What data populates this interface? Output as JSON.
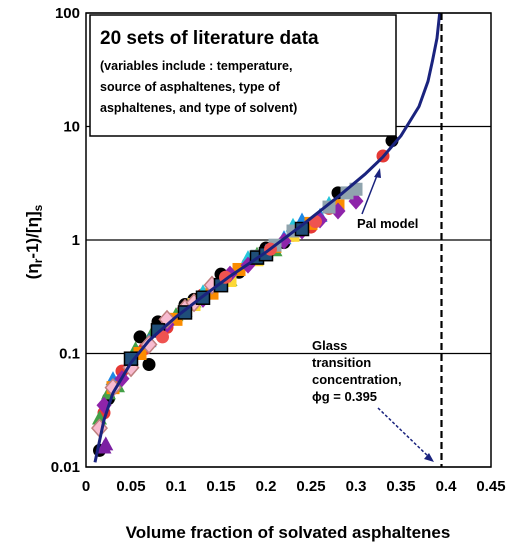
{
  "chart_data": {
    "type": "scatter",
    "title": "",
    "xlabel": "Volume fraction of  solvated asphaltenes",
    "ylabel": "(ηᵣ-1)/[η]ₛ",
    "ylabel_parts": {
      "a": "(η",
      "b": "r",
      "c": "-1)/[η]",
      "d": "s"
    },
    "xlim": [
      0,
      0.45
    ],
    "ylim": [
      0.01,
      100
    ],
    "yscale": "log",
    "grid": {
      "x": false,
      "y": true
    },
    "xticks": [
      "0",
      "0.05",
      "0.1",
      "0.15",
      "0.2",
      "0.25",
      "0.3",
      "0.35",
      "0.4",
      "0.45"
    ],
    "xtick_values": [
      0,
      0.05,
      0.1,
      0.15,
      0.2,
      0.25,
      0.3,
      0.35,
      0.4,
      0.45
    ],
    "yticks": [
      "0.01",
      "0.1",
      "1",
      "10",
      "100"
    ],
    "ytick_values": [
      0.01,
      0.1,
      1,
      10,
      100
    ],
    "info_box": {
      "title": "20 sets of literature data",
      "lines": [
        "(variables include : temperature,",
        "source of asphaltenes, type of",
        "asphaltenes, and type of solvent)"
      ]
    },
    "annotations": {
      "pal_model": "Pal model",
      "glass": [
        "Glass",
        "transition",
        "concentration,",
        "ϕg = 0.395"
      ]
    },
    "glass_transition": 0.395,
    "model_curve": {
      "name": "Pal model",
      "color": "#1a237e",
      "points": [
        [
          0.01,
          0.011
        ],
        [
          0.02,
          0.026
        ],
        [
          0.03,
          0.045
        ],
        [
          0.05,
          0.083
        ],
        [
          0.07,
          0.13
        ],
        [
          0.1,
          0.21
        ],
        [
          0.13,
          0.32
        ],
        [
          0.16,
          0.48
        ],
        [
          0.2,
          0.78
        ],
        [
          0.24,
          1.35
        ],
        [
          0.28,
          2.4
        ],
        [
          0.31,
          3.8
        ],
        [
          0.33,
          5.4
        ],
        [
          0.35,
          8.3
        ],
        [
          0.37,
          15
        ],
        [
          0.38,
          25
        ],
        [
          0.385,
          38
        ],
        [
          0.39,
          60
        ],
        [
          0.393,
          100
        ]
      ]
    },
    "series": [
      {
        "name": "",
        "color": "#000000",
        "marker": "circle",
        "points": [
          [
            0.015,
            0.014
          ],
          [
            0.025,
            0.04
          ],
          [
            0.06,
            0.14
          ],
          [
            0.07,
            0.08
          ],
          [
            0.08,
            0.19
          ],
          [
            0.11,
            0.27
          ],
          [
            0.15,
            0.5
          ],
          [
            0.2,
            0.85
          ],
          [
            0.22,
            0.95
          ],
          [
            0.28,
            2.6
          ],
          [
            0.34,
            7.5
          ],
          [
            0.12,
            0.3
          ],
          [
            0.17,
            0.52
          ]
        ]
      },
      {
        "name": "",
        "color": "#e53935",
        "marker": "circle",
        "points": [
          [
            0.02,
            0.03
          ],
          [
            0.04,
            0.07
          ],
          [
            0.065,
            0.11
          ],
          [
            0.09,
            0.17
          ],
          [
            0.13,
            0.33
          ],
          [
            0.18,
            0.62
          ],
          [
            0.23,
            1.1
          ],
          [
            0.25,
            1.3
          ],
          [
            0.27,
            1.9
          ],
          [
            0.33,
            5.5
          ],
          [
            0.14,
            0.38
          ]
        ]
      },
      {
        "name": "",
        "color": "#43a047",
        "marker": "triangle",
        "points": [
          [
            0.015,
            0.027
          ],
          [
            0.025,
            0.045
          ],
          [
            0.035,
            0.052
          ],
          [
            0.055,
            0.11
          ],
          [
            0.075,
            0.16
          ],
          [
            0.1,
            0.22
          ],
          [
            0.12,
            0.29
          ],
          [
            0.16,
            0.45
          ],
          [
            0.19,
            0.75
          ],
          [
            0.21,
            0.82
          ]
        ]
      },
      {
        "name": "",
        "color": "#1e88e5",
        "marker": "triangle",
        "points": [
          [
            0.03,
            0.06
          ],
          [
            0.07,
            0.13
          ],
          [
            0.11,
            0.24
          ],
          [
            0.15,
            0.42
          ],
          [
            0.2,
            0.8
          ],
          [
            0.24,
            1.5
          ],
          [
            0.26,
            1.65
          ],
          [
            0.22,
            1.05
          ]
        ]
      },
      {
        "name": "",
        "color": "#26c6da",
        "marker": "triangle",
        "points": [
          [
            0.09,
            0.2
          ],
          [
            0.13,
            0.35
          ],
          [
            0.18,
            0.7
          ],
          [
            0.23,
            1.35
          ],
          [
            0.27,
            2.1
          ]
        ]
      },
      {
        "name": "",
        "color": "#fb8c00",
        "marker": "square",
        "points": [
          [
            0.03,
            0.05
          ],
          [
            0.06,
            0.1
          ],
          [
            0.1,
            0.2
          ],
          [
            0.14,
            0.34
          ],
          [
            0.17,
            0.55
          ],
          [
            0.21,
            0.88
          ],
          [
            0.25,
            1.4
          ],
          [
            0.28,
            2.0
          ]
        ]
      },
      {
        "name": "",
        "color": "#fdd835",
        "marker": "square",
        "points": [
          [
            0.12,
            0.27
          ],
          [
            0.16,
            0.44
          ],
          [
            0.19,
            0.67
          ],
          [
            0.23,
            1.1
          ]
        ]
      },
      {
        "name": "",
        "color": "#8e24aa",
        "marker": "diamond",
        "points": [
          [
            0.02,
            0.035
          ],
          [
            0.04,
            0.06
          ],
          [
            0.05,
            0.08
          ],
          [
            0.09,
            0.18
          ],
          [
            0.13,
            0.3
          ],
          [
            0.18,
            0.6
          ],
          [
            0.22,
            0.98
          ],
          [
            0.24,
            1.2
          ],
          [
            0.26,
            1.5
          ],
          [
            0.28,
            1.8
          ],
          [
            0.3,
            2.2
          ],
          [
            0.16,
            0.5
          ]
        ]
      },
      {
        "name": "",
        "color": "#f8bbd0",
        "marker": "diamond",
        "stroke": "#c08080",
        "points": [
          [
            0.015,
            0.022
          ],
          [
            0.03,
            0.05
          ],
          [
            0.05,
            0.075
          ],
          [
            0.07,
            0.12
          ],
          [
            0.09,
            0.2
          ],
          [
            0.11,
            0.25
          ],
          [
            0.14,
            0.4
          ],
          [
            0.12,
            0.28
          ]
        ]
      },
      {
        "name": "",
        "color": "#90a4ae",
        "marker": "square",
        "points": [
          [
            0.19,
            0.72
          ],
          [
            0.23,
            1.2
          ],
          [
            0.27,
            1.95
          ],
          [
            0.29,
            2.6
          ],
          [
            0.3,
            2.8
          ],
          [
            0.21,
            0.9
          ]
        ]
      },
      {
        "name": "",
        "color": "#1f4e79",
        "marker": "square",
        "stroke": "#000000",
        "points": [
          [
            0.05,
            0.09
          ],
          [
            0.08,
            0.16
          ],
          [
            0.11,
            0.23
          ],
          [
            0.15,
            0.4
          ],
          [
            0.19,
            0.7
          ],
          [
            0.2,
            0.75
          ],
          [
            0.24,
            1.25
          ],
          [
            0.13,
            0.31
          ]
        ]
      },
      {
        "name": "",
        "color": "#ef5350",
        "marker": "circle",
        "points": [
          [
            0.085,
            0.14
          ],
          [
            0.155,
            0.47
          ],
          [
            0.205,
            0.83
          ],
          [
            0.255,
            1.45
          ]
        ]
      },
      {
        "name": "",
        "color": "#7b1fa2",
        "marker": "triangle",
        "points": [
          [
            0.02,
            0.015
          ],
          [
            0.022,
            0.016
          ]
        ]
      }
    ]
  }
}
